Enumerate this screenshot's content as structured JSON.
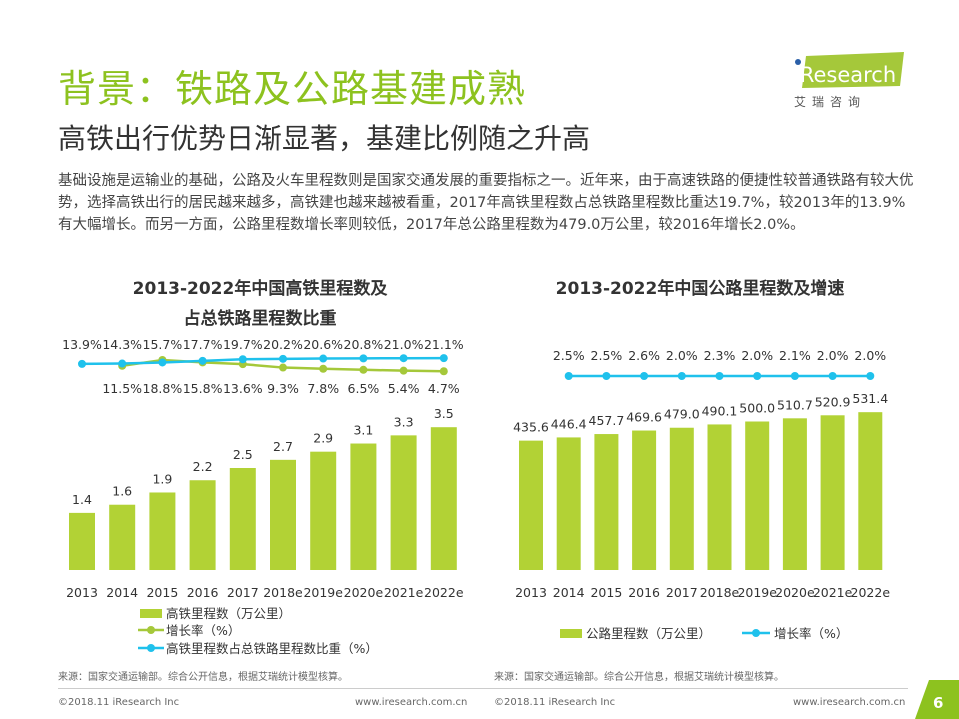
{
  "header": {
    "title": "背景：铁路及公路基建成熟",
    "subtitle": "高铁出行优势日渐显著，基建比例随之升高"
  },
  "logo": {
    "text": "iResearch",
    "cn": "艾 瑞 咨 询"
  },
  "body_text": "基础设施是运输业的基础，公路及火车里程数则是国家交通发展的重要指标之一。近年来，由于高速铁路的便捷性较普通铁路有较大优势，选择高铁出行的居民越来越多，高铁建也越来越被看重，2017年高铁里程数占总铁路里程数比重达19.7%，较2013年的13.9%有大幅增长。而另一方面，公路里程数增长率则较低，2017年总公路里程数为479.0万公里，较2016年增长2.0%。",
  "colors": {
    "bar": "#b2d235",
    "green_line": "#a5c83a",
    "blue_line": "#1fc1ec",
    "accent": "#8dc21f"
  },
  "chart_data": [
    {
      "type": "bar",
      "title_line1": "2013-2022年中国高铁里程数及",
      "title_line2": "占总铁路里程数比重",
      "categories": [
        "2013",
        "2014",
        "2015",
        "2016",
        "2017",
        "2018e",
        "2019e",
        "2020e",
        "2021e",
        "2022e"
      ],
      "series": [
        {
          "name": "高铁里程数（万公里）",
          "type": "bar",
          "values": [
            1.4,
            1.6,
            1.9,
            2.2,
            2.5,
            2.7,
            2.9,
            3.1,
            3.3,
            3.5
          ],
          "labels": [
            "1.4",
            "1.6",
            "1.9",
            "2.2",
            "2.5",
            "2.7",
            "2.9",
            "3.1",
            "3.3",
            "3.5"
          ]
        },
        {
          "name": "增长率（%）",
          "type": "line",
          "values": [
            null,
            11.5,
            18.8,
            15.8,
            13.6,
            9.3,
            7.8,
            6.5,
            5.4,
            4.7
          ],
          "labels": [
            "",
            "11.5%",
            "18.8%",
            "15.8%",
            "13.6%",
            "9.3%",
            "7.8%",
            "6.5%",
            "5.4%",
            "4.7%"
          ]
        },
        {
          "name": "高铁里程数占总铁路里程数比重（%）",
          "type": "line",
          "values": [
            13.9,
            14.3,
            15.7,
            17.7,
            19.7,
            20.2,
            20.6,
            20.8,
            21.0,
            21.1
          ],
          "labels": [
            "13.9%",
            "14.3%",
            "15.7%",
            "17.7%",
            "19.7%",
            "20.2%",
            "20.6%",
            "20.8%",
            "21.0%",
            "21.1%"
          ]
        }
      ]
    },
    {
      "type": "bar",
      "title": "2013-2022年中国公路里程数及增速",
      "categories": [
        "2013",
        "2014",
        "2015",
        "2016",
        "2017",
        "2018e",
        "2019e",
        "2020e",
        "2021e",
        "2022e"
      ],
      "series": [
        {
          "name": "公路里程数（万公里）",
          "type": "bar",
          "values": [
            435.6,
            446.4,
            457.7,
            469.6,
            479.0,
            490.1,
            500.0,
            510.7,
            520.9,
            531.4
          ],
          "labels": [
            "435.6",
            "446.4",
            "457.7",
            "469.6",
            "479.0",
            "490.1",
            "500.0",
            "510.7",
            "520.9",
            "531.4"
          ]
        },
        {
          "name": "增长率（%）",
          "type": "line",
          "values": [
            null,
            2.5,
            2.5,
            2.6,
            2.0,
            2.3,
            2.0,
            2.1,
            2.0,
            2.0
          ],
          "labels": [
            "",
            "2.5%",
            "2.5%",
            "2.6%",
            "2.0%",
            "2.3%",
            "2.0%",
            "2.1%",
            "2.0%",
            "2.0%"
          ]
        }
      ]
    }
  ],
  "footer": {
    "source": "来源：国家交通运输部。综合公开信息，根据艾瑞统计模型核算。",
    "copyright": "©2018.11 iResearch Inc",
    "url": "www.iresearch.com.cn",
    "page": "6"
  }
}
